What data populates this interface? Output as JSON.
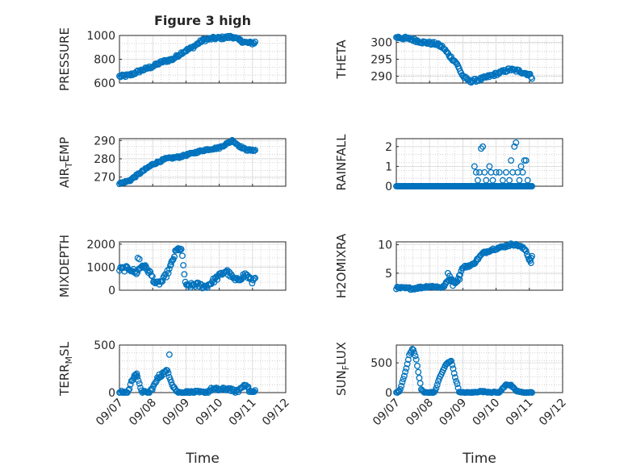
{
  "figure": {
    "title": "Figure 3 high",
    "colors": {
      "series": "#0072bd",
      "axes": "#262626"
    }
  },
  "chart_data": [
    {
      "type": "scatter",
      "ylabel": "PRESSURE",
      "xlim": [
        "09/07",
        "09/12"
      ],
      "ylim": [
        600,
        1000
      ],
      "yticks": [
        600,
        800,
        1000
      ],
      "xticks": [
        "09/07",
        "09/08",
        "09/09",
        "09/10",
        "09/11",
        "09/12"
      ],
      "grid": true,
      "keypoints": [
        [
          0.0,
          655
        ],
        [
          0.3,
          665
        ],
        [
          0.6,
          700
        ],
        [
          1.0,
          740
        ],
        [
          1.3,
          780
        ],
        [
          1.6,
          800
        ],
        [
          1.9,
          860
        ],
        [
          2.2,
          900
        ],
        [
          2.5,
          960
        ],
        [
          2.8,
          975
        ],
        [
          3.1,
          980
        ],
        [
          3.4,
          990
        ],
        [
          3.6,
          960
        ],
        [
          3.8,
          940
        ],
        [
          4.0,
          935
        ],
        [
          4.1,
          945
        ]
      ],
      "jitter": 12,
      "step": 0.03
    },
    {
      "type": "scatter",
      "ylabel": "THETA",
      "xlim": [
        "09/07",
        "09/12"
      ],
      "ylim": [
        288,
        302
      ],
      "yticks": [
        290,
        295,
        300
      ],
      "xticks": [
        "09/07",
        "09/08",
        "09/09",
        "09/10",
        "09/11",
        "09/12"
      ],
      "grid": true,
      "keypoints": [
        [
          0.0,
          301.5
        ],
        [
          0.4,
          301
        ],
        [
          0.8,
          300
        ],
        [
          1.2,
          299.5
        ],
        [
          1.4,
          298.5
        ],
        [
          1.6,
          296
        ],
        [
          1.8,
          294
        ],
        [
          2.0,
          290
        ],
        [
          2.2,
          288.5
        ],
        [
          2.5,
          289
        ],
        [
          2.8,
          290
        ],
        [
          3.1,
          291
        ],
        [
          3.4,
          292
        ],
        [
          3.7,
          291.5
        ],
        [
          4.0,
          290.5
        ],
        [
          4.1,
          289.5
        ]
      ],
      "jitter": 0.45,
      "step": 0.03
    },
    {
      "type": "scatter",
      "ylabel": "AIR_TEMP",
      "xlim": [
        "09/07",
        "09/12"
      ],
      "ylim": [
        265,
        291
      ],
      "yticks": [
        270,
        280,
        290
      ],
      "xticks": [
        "09/07",
        "09/08",
        "09/09",
        "09/10",
        "09/11",
        "09/12"
      ],
      "grid": true,
      "keypoints": [
        [
          0.0,
          266.5
        ],
        [
          0.3,
          268
        ],
        [
          0.6,
          272
        ],
        [
          1.0,
          277
        ],
        [
          1.4,
          280
        ],
        [
          1.8,
          281
        ],
        [
          2.2,
          283
        ],
        [
          2.6,
          285
        ],
        [
          3.0,
          286
        ],
        [
          3.2,
          288
        ],
        [
          3.4,
          290
        ],
        [
          3.6,
          287
        ],
        [
          3.8,
          285
        ],
        [
          4.0,
          284.5
        ],
        [
          4.1,
          285
        ]
      ],
      "jitter": 0.5,
      "step": 0.03
    },
    {
      "type": "scatter",
      "ylabel": "RAINFALL",
      "xlim": [
        "09/07",
        "09/12"
      ],
      "ylim": [
        0,
        2.4
      ],
      "yticks": [
        0,
        1,
        2
      ],
      "xticks": [
        "09/07",
        "09/08",
        "09/09",
        "09/10",
        "09/11",
        "09/12"
      ],
      "grid": true,
      "keypoints": [
        [
          0.0,
          0
        ],
        [
          2.3,
          0
        ],
        [
          4.1,
          0
        ]
      ],
      "jitter": 0,
      "step": 0.03,
      "extra_points": [
        [
          2.35,
          1.0
        ],
        [
          2.4,
          0.7
        ],
        [
          2.45,
          0.3
        ],
        [
          2.5,
          0.7
        ],
        [
          2.55,
          1.9
        ],
        [
          2.6,
          2.0
        ],
        [
          2.65,
          0.7
        ],
        [
          2.7,
          0.3
        ],
        [
          2.8,
          1.0
        ],
        [
          2.85,
          0.7
        ],
        [
          2.9,
          0.3
        ],
        [
          3.0,
          0.7
        ],
        [
          3.1,
          0.7
        ],
        [
          3.2,
          0.3
        ],
        [
          3.3,
          0.7
        ],
        [
          3.4,
          0.3
        ],
        [
          3.45,
          1.3
        ],
        [
          3.5,
          0.7
        ],
        [
          3.55,
          2.0
        ],
        [
          3.6,
          2.2
        ],
        [
          3.65,
          0.7
        ],
        [
          3.7,
          0.3
        ],
        [
          3.75,
          1.0
        ],
        [
          3.8,
          0.7
        ],
        [
          3.85,
          1.3
        ],
        [
          3.9,
          1.3
        ],
        [
          3.95,
          0.3
        ]
      ]
    },
    {
      "type": "scatter",
      "ylabel": "MIXDEPTH",
      "xlim": [
        "09/07",
        "09/12"
      ],
      "ylim": [
        0,
        2100
      ],
      "yticks": [
        0,
        1000,
        2000
      ],
      "xticks": [
        "09/07",
        "09/08",
        "09/09",
        "09/10",
        "09/11",
        "09/12"
      ],
      "grid": true,
      "keypoints": [
        [
          0.0,
          900
        ],
        [
          0.3,
          950
        ],
        [
          0.5,
          750
        ],
        [
          0.7,
          1100
        ],
        [
          0.9,
          800
        ],
        [
          1.1,
          250
        ],
        [
          1.3,
          400
        ],
        [
          1.5,
          900
        ],
        [
          1.7,
          1700
        ],
        [
          1.85,
          1850
        ],
        [
          2.0,
          150
        ],
        [
          2.3,
          250
        ],
        [
          2.6,
          150
        ],
        [
          2.9,
          500
        ],
        [
          3.2,
          850
        ],
        [
          3.5,
          400
        ],
        [
          3.8,
          700
        ],
        [
          4.0,
          350
        ],
        [
          4.1,
          650
        ]
      ],
      "jitter": 110,
      "step": 0.03,
      "extra_points": [
        [
          0.55,
          1400
        ],
        [
          0.6,
          1350
        ],
        [
          0.75,
          1050
        ],
        [
          1.75,
          1800
        ],
        [
          1.8,
          1750
        ],
        [
          1.6,
          1300
        ],
        [
          1.55,
          1100
        ]
      ]
    },
    {
      "type": "scatter",
      "ylabel": "H2OMIXRA",
      "xlim": [
        "09/07",
        "09/12"
      ],
      "ylim": [
        2,
        10.5
      ],
      "yticks": [
        5,
        10
      ],
      "xticks": [
        "09/07",
        "09/08",
        "09/09",
        "09/10",
        "09/11",
        "09/12"
      ],
      "grid": true,
      "keypoints": [
        [
          0.0,
          2.4
        ],
        [
          0.5,
          2.3
        ],
        [
          1.0,
          2.7
        ],
        [
          1.4,
          2.5
        ],
        [
          1.6,
          4.0
        ],
        [
          1.8,
          3.3
        ],
        [
          2.0,
          6.0
        ],
        [
          2.3,
          6.5
        ],
        [
          2.6,
          8.5
        ],
        [
          2.9,
          9.2
        ],
        [
          3.2,
          9.6
        ],
        [
          3.5,
          10.1
        ],
        [
          3.7,
          9.8
        ],
        [
          3.9,
          9.0
        ],
        [
          4.0,
          7.2
        ],
        [
          4.1,
          8.0
        ]
      ],
      "jitter": 0.2,
      "step": 0.03,
      "extra_points": [
        [
          1.55,
          5.0
        ],
        [
          1.6,
          4.5
        ],
        [
          1.65,
          3.8
        ],
        [
          1.7,
          2.8
        ],
        [
          1.9,
          3.9
        ],
        [
          4.0,
          7.5
        ],
        [
          4.05,
          6.8
        ]
      ]
    },
    {
      "type": "scatter",
      "ylabel": "TERR_MSL",
      "xlim": [
        "09/07",
        "09/12"
      ],
      "ylim": [
        0,
        500
      ],
      "yticks": [
        0,
        500
      ],
      "xticks": [
        "09/07",
        "09/08",
        "09/09",
        "09/10",
        "09/11",
        "09/12"
      ],
      "xlabel": "Time",
      "grid": true,
      "keypoints": [
        [
          0.0,
          0
        ],
        [
          0.25,
          0
        ],
        [
          0.4,
          150
        ],
        [
          0.5,
          200
        ],
        [
          0.6,
          80
        ],
        [
          0.7,
          0
        ],
        [
          0.9,
          0
        ],
        [
          1.05,
          80
        ],
        [
          1.15,
          150
        ],
        [
          1.3,
          200
        ],
        [
          1.45,
          230
        ],
        [
          1.6,
          80
        ],
        [
          1.75,
          0
        ],
        [
          2.6,
          0
        ],
        [
          2.8,
          40
        ],
        [
          3.0,
          30
        ],
        [
          3.3,
          40
        ],
        [
          3.5,
          0
        ],
        [
          3.7,
          60
        ],
        [
          3.8,
          100
        ],
        [
          3.9,
          20
        ],
        [
          4.0,
          0
        ],
        [
          4.1,
          20
        ]
      ],
      "jitter": 18,
      "step": 0.03,
      "extra_points": [
        [
          1.5,
          400
        ],
        [
          0.45,
          180
        ],
        [
          0.52,
          200
        ],
        [
          1.2,
          190
        ]
      ]
    },
    {
      "type": "scatter",
      "ylabel": "SUN_FLUX",
      "xlim": [
        "09/07",
        "09/12"
      ],
      "ylim": [
        0,
        800
      ],
      "yticks": [
        0,
        500
      ],
      "xticks": [
        "09/07",
        "09/08",
        "09/09",
        "09/10",
        "09/11",
        "09/12"
      ],
      "xlabel": "Time",
      "grid": true,
      "keypoints": [
        [
          0.0,
          0
        ],
        [
          0.1,
          20
        ],
        [
          0.25,
          300
        ],
        [
          0.4,
          650
        ],
        [
          0.5,
          750
        ],
        [
          0.6,
          550
        ],
        [
          0.75,
          50
        ],
        [
          0.85,
          0
        ],
        [
          1.15,
          0
        ],
        [
          1.3,
          250
        ],
        [
          1.5,
          480
        ],
        [
          1.65,
          540
        ],
        [
          1.75,
          300
        ],
        [
          1.9,
          0
        ],
        [
          2.3,
          0
        ],
        [
          2.5,
          20
        ],
        [
          2.8,
          10
        ],
        [
          3.1,
          0
        ],
        [
          3.3,
          140
        ],
        [
          3.45,
          120
        ],
        [
          3.6,
          30
        ],
        [
          3.8,
          0
        ],
        [
          4.1,
          0
        ]
      ],
      "jitter": 10,
      "step": 0.03
    }
  ]
}
